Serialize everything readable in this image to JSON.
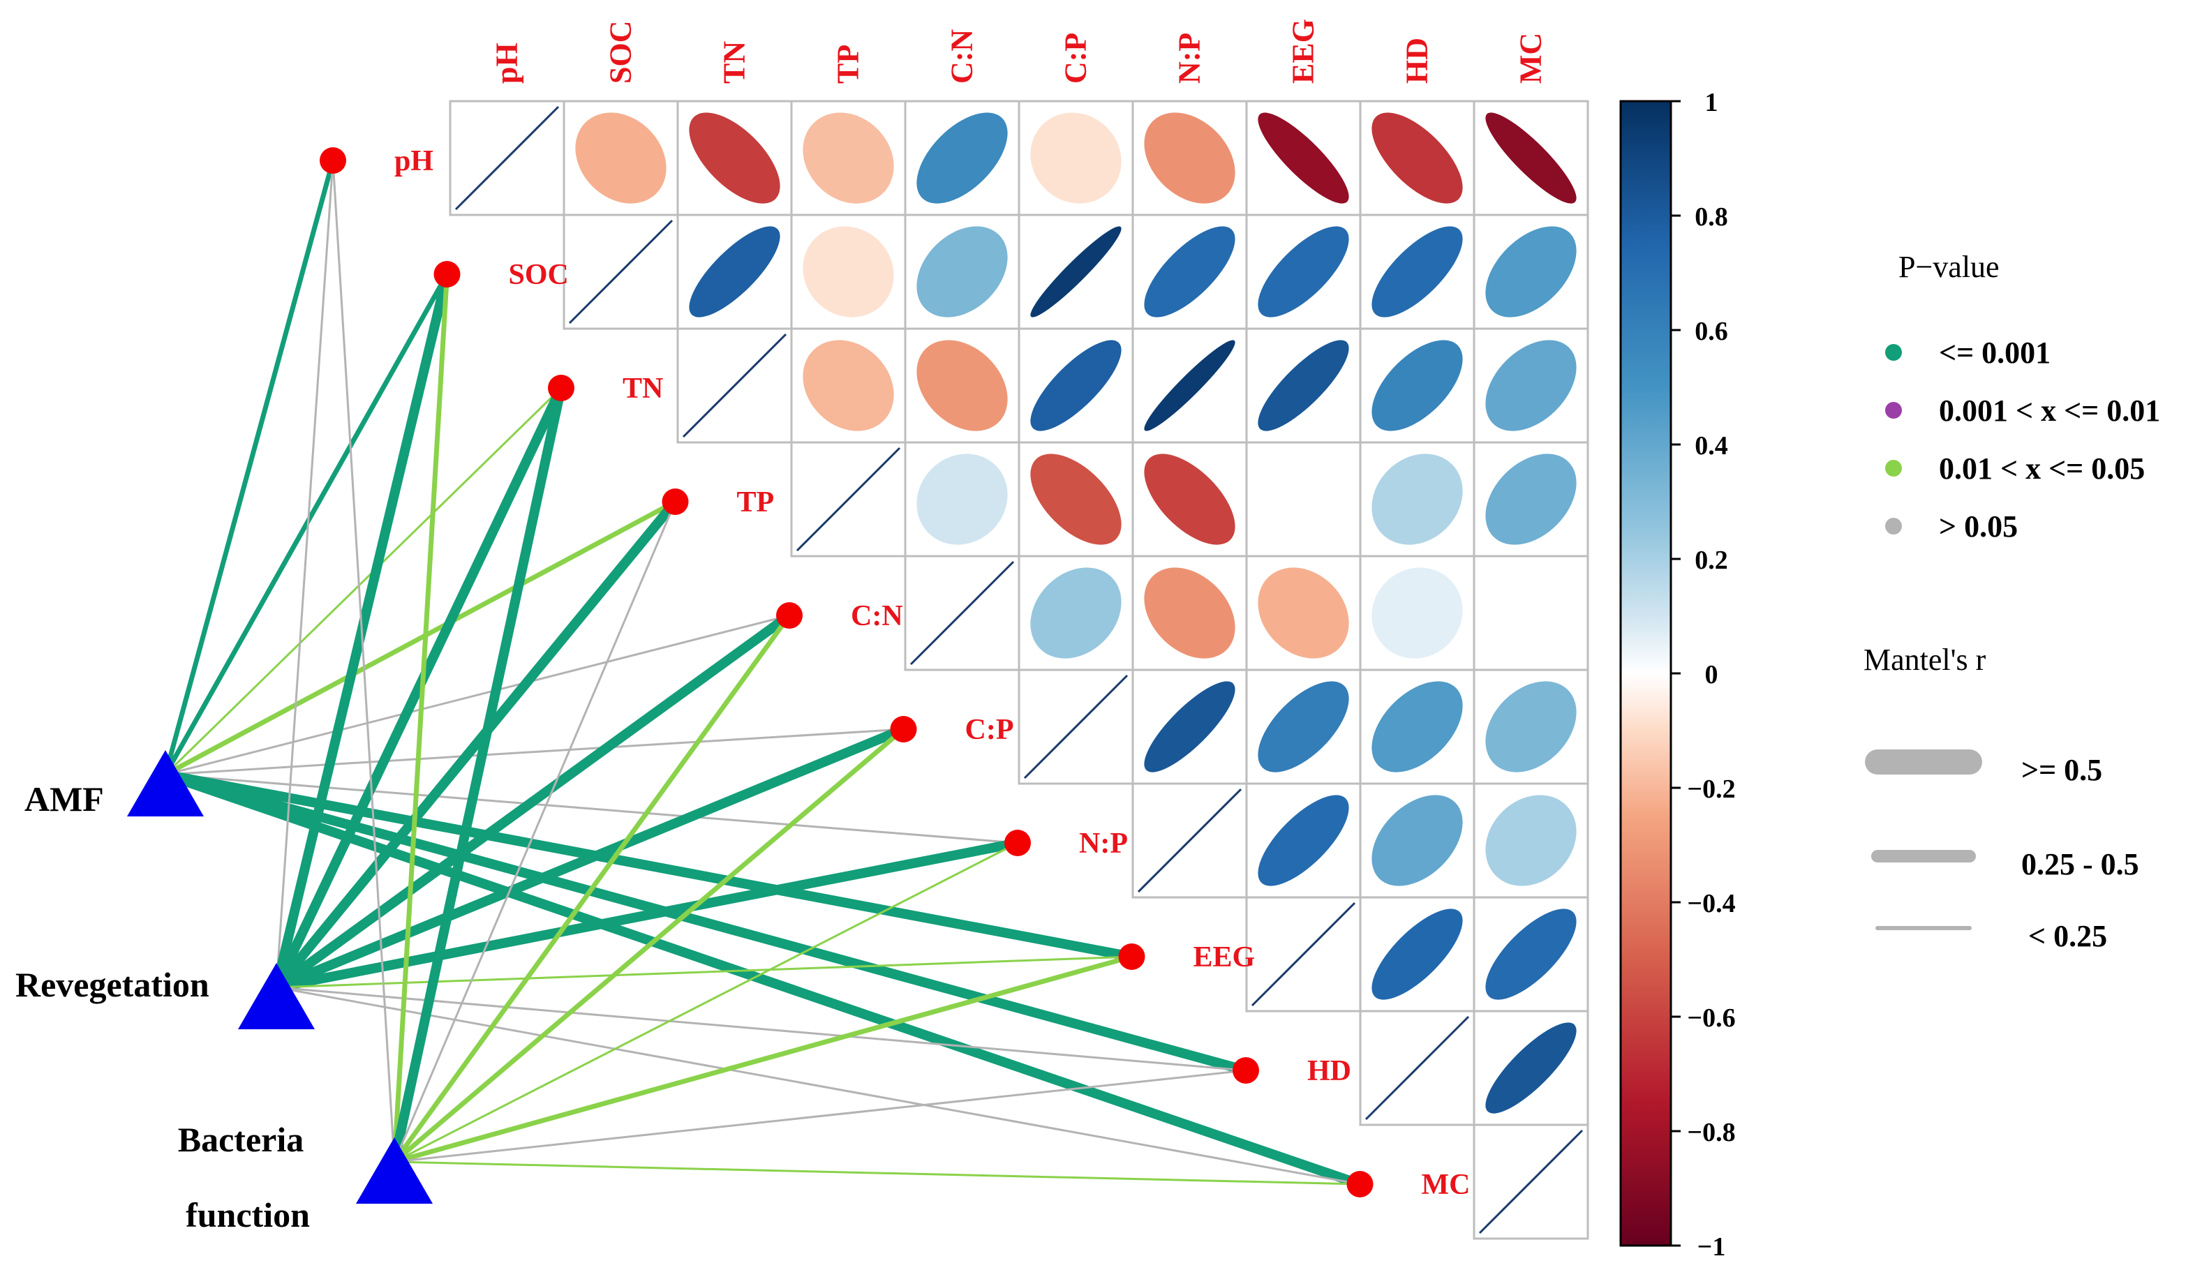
{
  "chart_data": {
    "type": "heatmap",
    "subtype": "mantel-test correlation network",
    "variables": [
      "pH",
      "SOC",
      "TN",
      "TP",
      "C:N",
      "C:P",
      "N:P",
      "EEG",
      "HD",
      "MC"
    ],
    "correlation_upper": [
      [
        1,
        -0.22,
        -0.62,
        -0.18,
        0.55,
        -0.08,
        -0.32,
        -0.85,
        -0.65,
        -0.88
      ],
      [
        null,
        1,
        0.78,
        -0.08,
        0.32,
        0.95,
        0.72,
        0.72,
        0.72,
        0.46
      ],
      [
        null,
        null,
        1,
        -0.2,
        -0.3,
        0.78,
        0.95,
        0.82,
        0.58,
        0.4
      ],
      [
        null,
        null,
        null,
        1,
        0.1,
        -0.55,
        -0.6,
        0.0,
        0.18,
        0.36
      ],
      [
        null,
        null,
        null,
        null,
        1,
        0.24,
        -0.32,
        -0.22,
        0.06,
        0.0
      ],
      [
        null,
        null,
        null,
        null,
        null,
        1,
        0.82,
        0.62,
        0.46,
        0.32
      ],
      [
        null,
        null,
        null,
        null,
        null,
        null,
        1,
        0.72,
        0.4,
        0.2
      ],
      [
        null,
        null,
        null,
        null,
        null,
        null,
        null,
        1,
        0.74,
        0.72
      ],
      [
        null,
        null,
        null,
        null,
        null,
        null,
        null,
        null,
        1,
        0.82
      ],
      [
        null,
        null,
        null,
        null,
        null,
        null,
        null,
        null,
        null,
        1
      ]
    ],
    "groups": [
      "AMF",
      "Revegetation",
      "Bacteria function"
    ],
    "mantel_links": [
      {
        "group": "AMF",
        "variable": "pH",
        "p_class": 0,
        "r_class": 1
      },
      {
        "group": "AMF",
        "variable": "SOC",
        "p_class": 0,
        "r_class": 1
      },
      {
        "group": "AMF",
        "variable": "TN",
        "p_class": 2,
        "r_class": 2
      },
      {
        "group": "AMF",
        "variable": "TP",
        "p_class": 2,
        "r_class": 1
      },
      {
        "group": "AMF",
        "variable": "C:N",
        "p_class": 3,
        "r_class": 2
      },
      {
        "group": "AMF",
        "variable": "C:P",
        "p_class": 3,
        "r_class": 2
      },
      {
        "group": "AMF",
        "variable": "N:P",
        "p_class": 3,
        "r_class": 2
      },
      {
        "group": "AMF",
        "variable": "EEG",
        "p_class": 0,
        "r_class": 0
      },
      {
        "group": "AMF",
        "variable": "HD",
        "p_class": 0,
        "r_class": 0
      },
      {
        "group": "AMF",
        "variable": "MC",
        "p_class": 0,
        "r_class": 0
      },
      {
        "group": "Revegetation",
        "variable": "pH",
        "p_class": 3,
        "r_class": 2
      },
      {
        "group": "Revegetation",
        "variable": "SOC",
        "p_class": 0,
        "r_class": 0
      },
      {
        "group": "Revegetation",
        "variable": "TN",
        "p_class": 0,
        "r_class": 0
      },
      {
        "group": "Revegetation",
        "variable": "TP",
        "p_class": 0,
        "r_class": 0
      },
      {
        "group": "Revegetation",
        "variable": "C:N",
        "p_class": 0,
        "r_class": 0
      },
      {
        "group": "Revegetation",
        "variable": "C:P",
        "p_class": 0,
        "r_class": 0
      },
      {
        "group": "Revegetation",
        "variable": "N:P",
        "p_class": 0,
        "r_class": 0
      },
      {
        "group": "Revegetation",
        "variable": "EEG",
        "p_class": 2,
        "r_class": 2
      },
      {
        "group": "Revegetation",
        "variable": "HD",
        "p_class": 3,
        "r_class": 2
      },
      {
        "group": "Revegetation",
        "variable": "MC",
        "p_class": 3,
        "r_class": 2
      },
      {
        "group": "Bacteria function",
        "variable": "pH",
        "p_class": 3,
        "r_class": 2
      },
      {
        "group": "Bacteria function",
        "variable": "SOC",
        "p_class": 2,
        "r_class": 1
      },
      {
        "group": "Bacteria function",
        "variable": "TN",
        "p_class": 0,
        "r_class": 0
      },
      {
        "group": "Bacteria function",
        "variable": "TP",
        "p_class": 3,
        "r_class": 2
      },
      {
        "group": "Bacteria function",
        "variable": "C:N",
        "p_class": 2,
        "r_class": 1
      },
      {
        "group": "Bacteria function",
        "variable": "C:P",
        "p_class": 2,
        "r_class": 1
      },
      {
        "group": "Bacteria function",
        "variable": "N:P",
        "p_class": 2,
        "r_class": 2
      },
      {
        "group": "Bacteria function",
        "variable": "EEG",
        "p_class": 2,
        "r_class": 1
      },
      {
        "group": "Bacteria function",
        "variable": "HD",
        "p_class": 3,
        "r_class": 2
      },
      {
        "group": "Bacteria function",
        "variable": "MC",
        "p_class": 2,
        "r_class": 2
      }
    ],
    "colorbar": {
      "range": [
        -1,
        1
      ],
      "ticks": [
        1,
        0.8,
        0.6,
        0.4,
        0.2,
        0,
        -0.2,
        -0.4,
        -0.6,
        -0.8,
        -1
      ],
      "tick_labels": [
        "1",
        "0.8",
        "0.6",
        "0.4",
        "0.2",
        "0",
        "−0.2",
        "−0.4",
        "−0.6",
        "−0.8",
        "−1"
      ]
    },
    "legend_p": {
      "title": "P−value",
      "entries": [
        "<= 0.001",
        "0.001 < x <= 0.01",
        "0.01 < x <= 0.05",
        "> 0.05"
      ],
      "colors": [
        "#129e79",
        "#9b3fa8",
        "#8ad24a",
        "#b3b3b3"
      ]
    },
    "legend_r": {
      "title": "Mantel's r",
      "entries": [
        ">= 0.5",
        "0.25 - 0.5",
        "< 0.25"
      ]
    }
  }
}
